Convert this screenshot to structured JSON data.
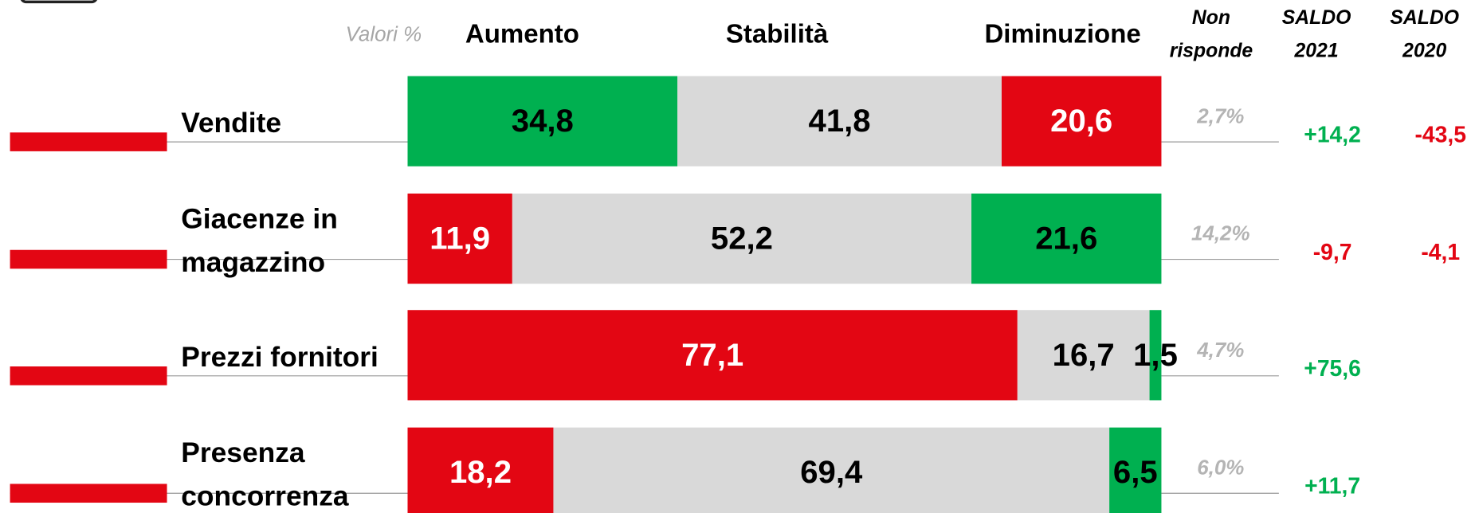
{
  "chart_data": {
    "type": "bar",
    "orientation": "horizontal",
    "stacked": "percent",
    "units_label": "Valori %",
    "categories": [
      [
        "Vendite"
      ],
      [
        "Giacenze in",
        "magazzino"
      ],
      [
        "Prezzi fornitori"
      ],
      [
        "Presenza",
        "concorrenza"
      ]
    ],
    "series": [
      {
        "name": "Aumento",
        "colors": [
          "#00b050",
          "#e30613",
          "#e30613",
          "#e30613"
        ],
        "values": [
          34.8,
          11.9,
          77.1,
          18.2
        ],
        "value_labels": [
          "34,8",
          "11,9",
          "77,1",
          "18,2"
        ]
      },
      {
        "name": "Stabilità",
        "colors": [
          "#d9d9d9",
          "#d9d9d9",
          "#d9d9d9",
          "#d9d9d9"
        ],
        "values": [
          41.8,
          52.2,
          16.7,
          69.4
        ],
        "value_labels": [
          "41,8",
          "52,2",
          "16,7",
          "69,4"
        ]
      },
      {
        "name": "Diminuzione",
        "colors": [
          "#e30613",
          "#00b050",
          "#00b050",
          "#00b050"
        ],
        "values": [
          20.6,
          21.6,
          1.5,
          6.5
        ],
        "value_labels": [
          "20,6",
          "21,6",
          "1,5",
          "6,5"
        ]
      }
    ],
    "columns": [
      {
        "name": [
          "Non",
          "risponde"
        ],
        "values": [
          2.7,
          14.2,
          4.7,
          6.0
        ],
        "value_labels": [
          "2,7%",
          "14,2%",
          "4,7%",
          "6,0%"
        ]
      },
      {
        "name": [
          "SALDO",
          "2021"
        ],
        "values": [
          14.2,
          -9.7,
          75.6,
          11.7
        ],
        "value_labels": [
          "+14,2",
          "-9,7",
          "+75,6",
          "+11,7"
        ]
      },
      {
        "name": [
          "SALDO",
          "2020"
        ],
        "values": [
          -43.5,
          -4.1,
          null,
          null
        ],
        "value_labels": [
          "-43,5",
          "-4,1",
          null,
          null
        ]
      }
    ]
  }
}
